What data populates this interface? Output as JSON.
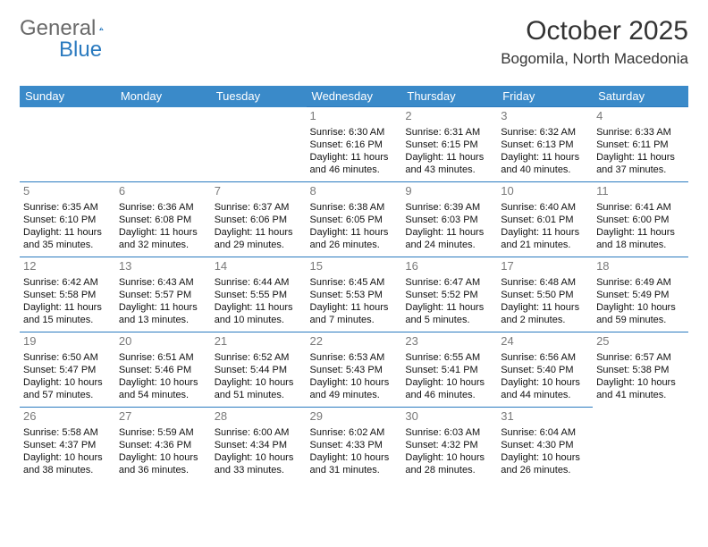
{
  "brand": {
    "general": "General",
    "blue": "Blue"
  },
  "header": {
    "title": "October 2025",
    "location": "Bogomila, North Macedonia"
  },
  "colors": {
    "header_bg": "#3a8ac9",
    "border": "#2a7abf",
    "daynum": "#7a7a7a",
    "logo_gray": "#6a6a6a",
    "logo_blue": "#2a7abf"
  },
  "weekdays": [
    "Sunday",
    "Monday",
    "Tuesday",
    "Wednesday",
    "Thursday",
    "Friday",
    "Saturday"
  ],
  "weeks": [
    [
      null,
      null,
      null,
      {
        "n": "1",
        "sr": "6:30 AM",
        "ss": "6:16 PM",
        "dl": "11 hours and 46 minutes."
      },
      {
        "n": "2",
        "sr": "6:31 AM",
        "ss": "6:15 PM",
        "dl": "11 hours and 43 minutes."
      },
      {
        "n": "3",
        "sr": "6:32 AM",
        "ss": "6:13 PM",
        "dl": "11 hours and 40 minutes."
      },
      {
        "n": "4",
        "sr": "6:33 AM",
        "ss": "6:11 PM",
        "dl": "11 hours and 37 minutes."
      }
    ],
    [
      {
        "n": "5",
        "sr": "6:35 AM",
        "ss": "6:10 PM",
        "dl": "11 hours and 35 minutes."
      },
      {
        "n": "6",
        "sr": "6:36 AM",
        "ss": "6:08 PM",
        "dl": "11 hours and 32 minutes."
      },
      {
        "n": "7",
        "sr": "6:37 AM",
        "ss": "6:06 PM",
        "dl": "11 hours and 29 minutes."
      },
      {
        "n": "8",
        "sr": "6:38 AM",
        "ss": "6:05 PM",
        "dl": "11 hours and 26 minutes."
      },
      {
        "n": "9",
        "sr": "6:39 AM",
        "ss": "6:03 PM",
        "dl": "11 hours and 24 minutes."
      },
      {
        "n": "10",
        "sr": "6:40 AM",
        "ss": "6:01 PM",
        "dl": "11 hours and 21 minutes."
      },
      {
        "n": "11",
        "sr": "6:41 AM",
        "ss": "6:00 PM",
        "dl": "11 hours and 18 minutes."
      }
    ],
    [
      {
        "n": "12",
        "sr": "6:42 AM",
        "ss": "5:58 PM",
        "dl": "11 hours and 15 minutes."
      },
      {
        "n": "13",
        "sr": "6:43 AM",
        "ss": "5:57 PM",
        "dl": "11 hours and 13 minutes."
      },
      {
        "n": "14",
        "sr": "6:44 AM",
        "ss": "5:55 PM",
        "dl": "11 hours and 10 minutes."
      },
      {
        "n": "15",
        "sr": "6:45 AM",
        "ss": "5:53 PM",
        "dl": "11 hours and 7 minutes."
      },
      {
        "n": "16",
        "sr": "6:47 AM",
        "ss": "5:52 PM",
        "dl": "11 hours and 5 minutes."
      },
      {
        "n": "17",
        "sr": "6:48 AM",
        "ss": "5:50 PM",
        "dl": "11 hours and 2 minutes."
      },
      {
        "n": "18",
        "sr": "6:49 AM",
        "ss": "5:49 PM",
        "dl": "10 hours and 59 minutes."
      }
    ],
    [
      {
        "n": "19",
        "sr": "6:50 AM",
        "ss": "5:47 PM",
        "dl": "10 hours and 57 minutes."
      },
      {
        "n": "20",
        "sr": "6:51 AM",
        "ss": "5:46 PM",
        "dl": "10 hours and 54 minutes."
      },
      {
        "n": "21",
        "sr": "6:52 AM",
        "ss": "5:44 PM",
        "dl": "10 hours and 51 minutes."
      },
      {
        "n": "22",
        "sr": "6:53 AM",
        "ss": "5:43 PM",
        "dl": "10 hours and 49 minutes."
      },
      {
        "n": "23",
        "sr": "6:55 AM",
        "ss": "5:41 PM",
        "dl": "10 hours and 46 minutes."
      },
      {
        "n": "24",
        "sr": "6:56 AM",
        "ss": "5:40 PM",
        "dl": "10 hours and 44 minutes."
      },
      {
        "n": "25",
        "sr": "6:57 AM",
        "ss": "5:38 PM",
        "dl": "10 hours and 41 minutes."
      }
    ],
    [
      {
        "n": "26",
        "sr": "5:58 AM",
        "ss": "4:37 PM",
        "dl": "10 hours and 38 minutes."
      },
      {
        "n": "27",
        "sr": "5:59 AM",
        "ss": "4:36 PM",
        "dl": "10 hours and 36 minutes."
      },
      {
        "n": "28",
        "sr": "6:00 AM",
        "ss": "4:34 PM",
        "dl": "10 hours and 33 minutes."
      },
      {
        "n": "29",
        "sr": "6:02 AM",
        "ss": "4:33 PM",
        "dl": "10 hours and 31 minutes."
      },
      {
        "n": "30",
        "sr": "6:03 AM",
        "ss": "4:32 PM",
        "dl": "10 hours and 28 minutes."
      },
      {
        "n": "31",
        "sr": "6:04 AM",
        "ss": "4:30 PM",
        "dl": "10 hours and 26 minutes."
      },
      null
    ]
  ],
  "labels": {
    "sunrise": "Sunrise: ",
    "sunset": "Sunset: ",
    "daylight": "Daylight: "
  }
}
